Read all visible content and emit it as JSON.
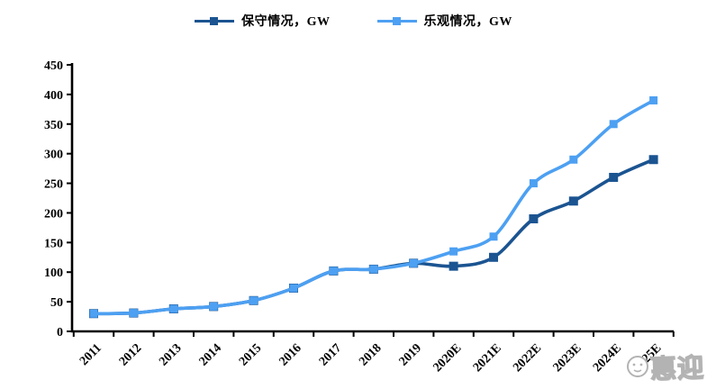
{
  "chart_data": {
    "type": "line",
    "title": "",
    "categories": [
      "2011",
      "2012",
      "2013",
      "2014",
      "2015",
      "2016",
      "2017",
      "2018",
      "2019",
      "2020E",
      "2021E",
      "2022E",
      "2023E",
      "2024E",
      "2025E"
    ],
    "series": [
      {
        "key": "conservative",
        "name": "保守情况，GW",
        "color": "#1B5491",
        "values": [
          30,
          31,
          38,
          42,
          52,
          73,
          102,
          105,
          115,
          110,
          125,
          190,
          220,
          260,
          290
        ]
      },
      {
        "key": "optimistic",
        "name": "乐观情况，GW",
        "color": "#4DA0F2",
        "values": [
          30,
          31,
          38,
          42,
          52,
          73,
          102,
          105,
          115,
          135,
          160,
          250,
          290,
          350,
          390
        ]
      }
    ],
    "xlabel": "",
    "ylabel": "",
    "ylim": [
      0,
      450
    ],
    "yticks": [
      0,
      50,
      100,
      150,
      200,
      250,
      300,
      350,
      400,
      450
    ],
    "grid": false,
    "legend_position": "top-center",
    "axis_color": "#000000",
    "line_style": "smooth",
    "marker": "square"
  },
  "watermark": {
    "text": "惠迎",
    "color": "#b3b3b3"
  }
}
